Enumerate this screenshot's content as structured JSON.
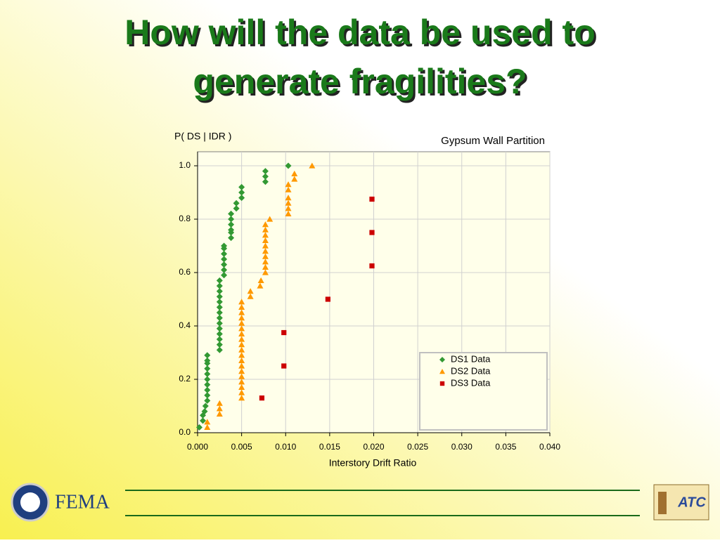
{
  "slide": {
    "title_lines": [
      "How will the data be used to",
      "generate fragilities?"
    ],
    "footer_left": "FEMA",
    "footer_right": "ATC"
  },
  "chart_data": {
    "type": "scatter",
    "title": "Gypsum Wall Partition",
    "y_label": "P( DS | IDR )",
    "x_label": "Interstory Drift Ratio",
    "xlim": [
      0,
      0.04
    ],
    "ylim": [
      0,
      1
    ],
    "xticks": [
      {
        "value": 0,
        "label": "0.000"
      },
      {
        "value": 0.005,
        "label": "0.005"
      },
      {
        "value": 0.01,
        "label": "0.010"
      },
      {
        "value": 0.015,
        "label": "0.015"
      },
      {
        "value": 0.02,
        "label": "0.020"
      },
      {
        "value": 0.025,
        "label": "0.025"
      },
      {
        "value": 0.03,
        "label": "0.030"
      },
      {
        "value": 0.035,
        "label": "0.035"
      },
      {
        "value": 0.04,
        "label": "0.040"
      }
    ],
    "yticks": [
      {
        "value": 0,
        "label": "0.0"
      },
      {
        "value": 0.2,
        "label": "0.2"
      },
      {
        "value": 0.4,
        "label": "0.4"
      },
      {
        "value": 0.6,
        "label": "0.6"
      },
      {
        "value": 0.8,
        "label": "0.8"
      },
      {
        "value": 1,
        "label": "1.0"
      }
    ],
    "grid": true,
    "legend": "lower right",
    "series": [
      {
        "name": "DS1 Data",
        "color": "#339933",
        "marker": "diamond",
        "x": [
          0.0002,
          0.0006,
          0.0006,
          0.0008,
          0.0009,
          0.0011,
          0.0011,
          0.0011,
          0.0011,
          0.0011,
          0.0011,
          0.0011,
          0.0011,
          0.0011,
          0.0011,
          0.0025,
          0.0025,
          0.0025,
          0.0025,
          0.0025,
          0.0025,
          0.0025,
          0.0025,
          0.0025,
          0.0025,
          0.0025,
          0.0025,
          0.0025,
          0.0025,
          0.003,
          0.003,
          0.003,
          0.003,
          0.003,
          0.003,
          0.003,
          0.0038,
          0.0038,
          0.0038,
          0.0038,
          0.0038,
          0.0038,
          0.0044,
          0.0044,
          0.005,
          0.005,
          0.005,
          0.0077,
          0.0077,
          0.0077,
          0.0103
        ],
        "values": [
          0.02,
          0.045,
          0.065,
          0.08,
          0.1,
          0.12,
          0.14,
          0.16,
          0.18,
          0.2,
          0.22,
          0.24,
          0.26,
          0.27,
          0.29,
          0.31,
          0.33,
          0.35,
          0.37,
          0.39,
          0.41,
          0.43,
          0.45,
          0.47,
          0.49,
          0.51,
          0.53,
          0.55,
          0.57,
          0.59,
          0.61,
          0.63,
          0.65,
          0.67,
          0.69,
          0.7,
          0.73,
          0.75,
          0.76,
          0.78,
          0.8,
          0.82,
          0.84,
          0.86,
          0.88,
          0.9,
          0.92,
          0.94,
          0.96,
          0.98,
          1.0
        ]
      },
      {
        "name": "DS2 Data",
        "color": "#ff9900",
        "marker": "triangle",
        "x": [
          0.0011,
          0.0011,
          0.0025,
          0.0025,
          0.0025,
          0.005,
          0.005,
          0.005,
          0.005,
          0.005,
          0.005,
          0.005,
          0.005,
          0.005,
          0.005,
          0.005,
          0.005,
          0.005,
          0.005,
          0.005,
          0.005,
          0.005,
          0.005,
          0.005,
          0.006,
          0.006,
          0.0071,
          0.0072,
          0.0077,
          0.0077,
          0.0077,
          0.0077,
          0.0077,
          0.0077,
          0.0077,
          0.0077,
          0.0077,
          0.0077,
          0.0082,
          0.0103,
          0.0103,
          0.0103,
          0.0103,
          0.0103,
          0.0103,
          0.011,
          0.011,
          0.013
        ],
        "values": [
          0.02,
          0.04,
          0.07,
          0.09,
          0.11,
          0.13,
          0.15,
          0.17,
          0.19,
          0.21,
          0.23,
          0.25,
          0.27,
          0.29,
          0.31,
          0.33,
          0.35,
          0.37,
          0.39,
          0.41,
          0.43,
          0.45,
          0.47,
          0.49,
          0.51,
          0.53,
          0.55,
          0.57,
          0.6,
          0.62,
          0.64,
          0.66,
          0.68,
          0.7,
          0.72,
          0.74,
          0.76,
          0.78,
          0.8,
          0.82,
          0.84,
          0.86,
          0.88,
          0.91,
          0.93,
          0.95,
          0.97,
          1.0
        ]
      },
      {
        "name": "DS3 Data",
        "color": "#cc0000",
        "marker": "square",
        "x": [
          0.0073,
          0.0098,
          0.0098,
          0.0148,
          0.0198,
          0.0198,
          0.0198
        ],
        "values": [
          0.13,
          0.25,
          0.375,
          0.5,
          0.625,
          0.75,
          0.875
        ]
      }
    ]
  }
}
